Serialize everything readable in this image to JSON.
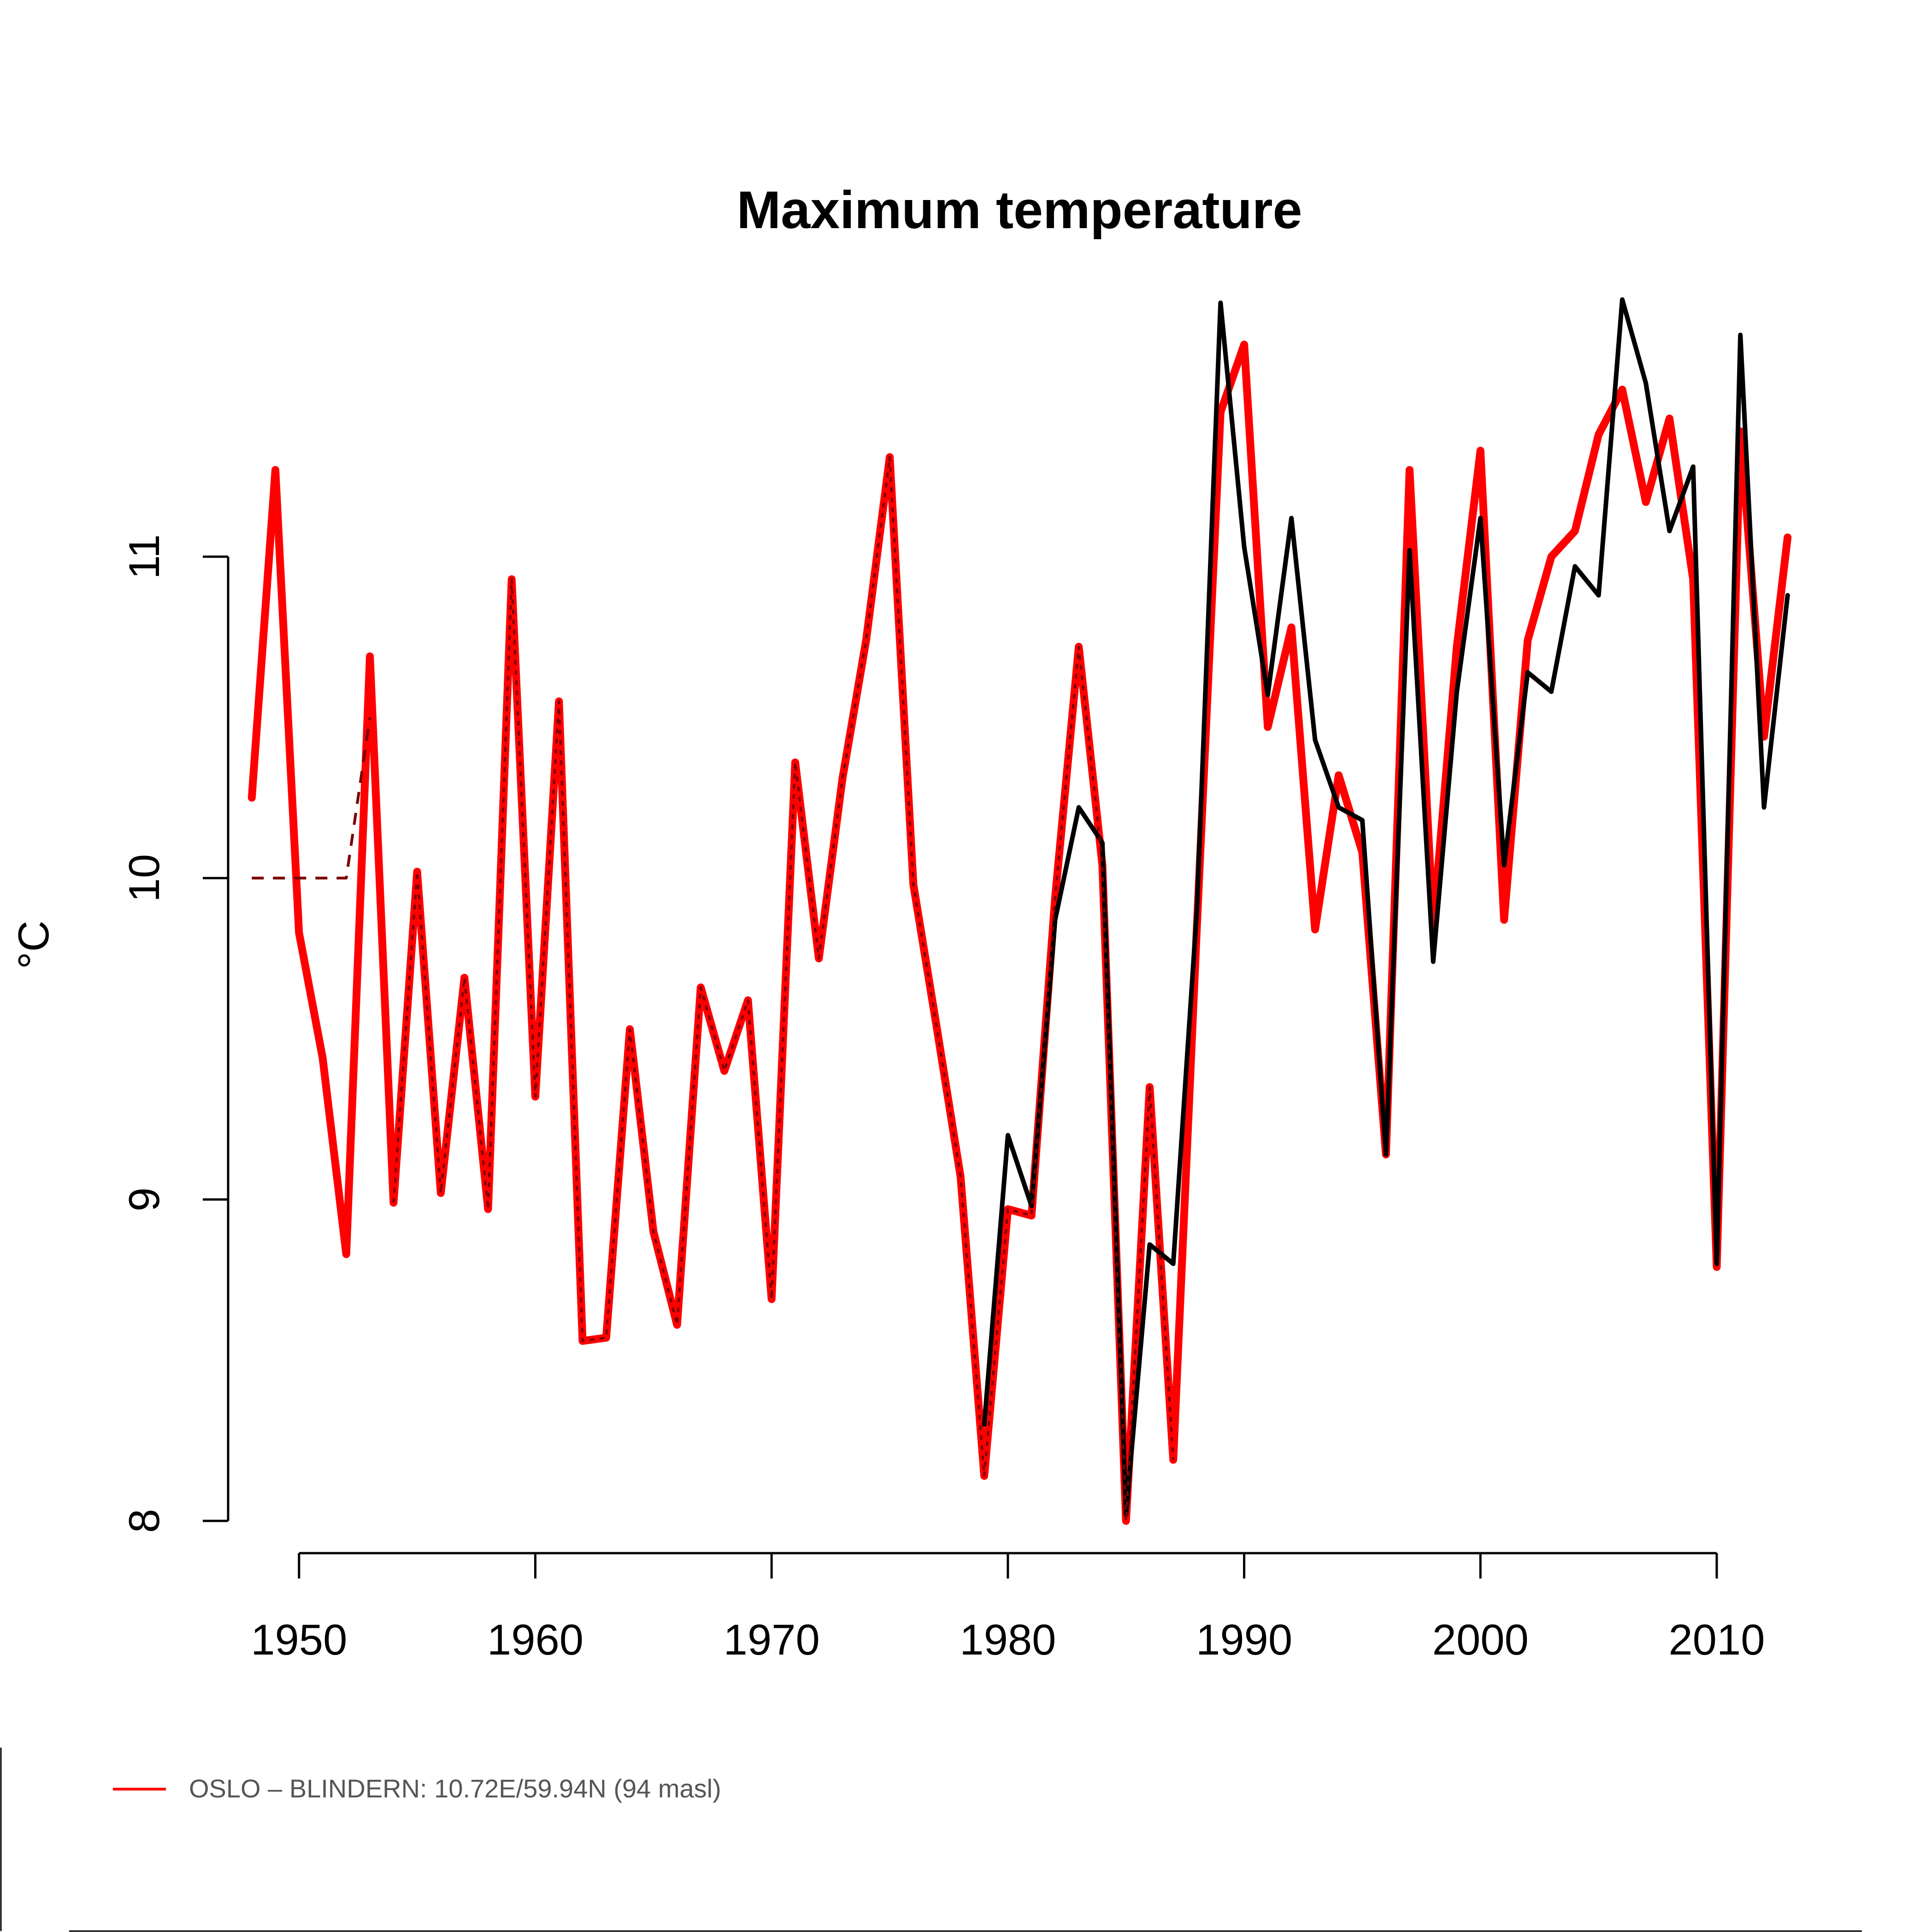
{
  "chart_data": {
    "type": "line",
    "title": "Maximum temperature",
    "xlabel": "",
    "ylabel": "°C",
    "xlim": [
      1947,
      2014
    ],
    "ylim": [
      8,
      11.8
    ],
    "x_ticks": [
      1950,
      1960,
      1970,
      1980,
      1990,
      2000,
      2010
    ],
    "y_ticks": [
      8,
      9,
      10,
      11
    ],
    "grid": false,
    "legend_position": "bottom-left",
    "series": [
      {
        "name": "OSLO – BLINDERN: 10.72E/59.94N (94 masl)",
        "in_legend": true,
        "color": "#ff0000",
        "style": "solid-thick",
        "x": [
          1948,
          1949,
          1950,
          1951,
          1952,
          1953,
          1954,
          1955,
          1956,
          1957,
          1958,
          1959,
          1960,
          1961,
          1962,
          1963,
          1964,
          1965,
          1966,
          1967,
          1968,
          1969,
          1970,
          1971,
          1972,
          1973,
          1974,
          1975,
          1976,
          1977,
          1978,
          1979,
          1980,
          1981,
          1982,
          1983,
          1984,
          1985,
          1986,
          1987,
          1988,
          1989,
          1990,
          1991,
          1992,
          1993,
          1994,
          1995,
          1996,
          1997,
          1998,
          1999,
          2000,
          2001,
          2002,
          2003,
          2004,
          2005,
          2006,
          2007,
          2008,
          2009,
          2010,
          2011,
          2012,
          2013
        ],
        "values": [
          10.25,
          11.27,
          9.83,
          9.44,
          8.83,
          10.69,
          8.99,
          10.02,
          9.02,
          9.69,
          8.97,
          10.93,
          9.32,
          10.55,
          8.56,
          8.57,
          9.53,
          8.9,
          8.61,
          9.66,
          9.4,
          9.62,
          8.69,
          10.36,
          9.75,
          10.31,
          10.74,
          11.31,
          9.98,
          9.53,
          9.07,
          8.14,
          8.97,
          8.95,
          9.94,
          10.72,
          10.04,
          8.0,
          9.35,
          8.19,
          9.85,
          11.45,
          11.66,
          10.47,
          10.78,
          9.84,
          10.32,
          10.08,
          9.14,
          11.27,
          9.85,
          10.72,
          11.33,
          9.87,
          10.74,
          11.0,
          11.08,
          11.38,
          11.52,
          11.17,
          11.43,
          10.93,
          8.79,
          11.39,
          10.44,
          11.06
        ]
      },
      {
        "name": "",
        "in_legend": false,
        "color": "#000000",
        "style": "solid",
        "x": [
          1979,
          1980,
          1981,
          1982,
          1983,
          1984,
          1985,
          1986,
          1987,
          1988,
          1989,
          1990,
          1991,
          1992,
          1993,
          1994,
          1995,
          1996,
          1997,
          1998,
          1999,
          2000,
          2001,
          2002,
          2003,
          2004,
          2005,
          2006,
          2007,
          2008,
          2009,
          2010,
          2011,
          2012,
          2013
        ],
        "values": [
          8.3,
          9.2,
          8.98,
          9.87,
          10.22,
          10.11,
          8.02,
          8.86,
          8.8,
          9.9,
          11.79,
          11.03,
          10.57,
          11.12,
          10.43,
          10.22,
          10.18,
          9.14,
          11.02,
          9.74,
          10.58,
          11.12,
          10.04,
          10.64,
          10.58,
          10.97,
          10.88,
          11.8,
          11.54,
          11.08,
          11.28,
          8.8,
          11.69,
          10.22,
          10.88
        ]
      },
      {
        "name": "",
        "in_legend": false,
        "color": "#7a0000",
        "style": "dashed",
        "x": [
          1948,
          1949,
          1950,
          1951,
          1952,
          1953
        ],
        "values": [
          10.0,
          10.0,
          10.0,
          10.0,
          10.0,
          10.5
        ]
      },
      {
        "name": "",
        "in_legend": false,
        "color": "#7a0000",
        "style": "dotted",
        "x": [
          1954,
          1955,
          1956,
          1957,
          1958,
          1959,
          1960,
          1961,
          1962,
          1963,
          1964,
          1965,
          1966,
          1967,
          1968,
          1969,
          1970,
          1971,
          1972,
          1973,
          1974,
          1975,
          1976,
          1977,
          1978,
          1979,
          1980,
          1981,
          1982,
          1983,
          1984,
          1985,
          1986,
          1987
        ],
        "values": [
          8.99,
          10.02,
          9.02,
          9.69,
          8.97,
          10.93,
          9.32,
          10.55,
          8.56,
          8.57,
          9.53,
          8.9,
          8.61,
          9.66,
          9.4,
          9.62,
          8.69,
          10.36,
          9.75,
          10.31,
          10.74,
          11.31,
          9.98,
          9.53,
          9.07,
          8.14,
          8.97,
          8.95,
          9.94,
          10.72,
          10.04,
          8.0,
          9.35,
          8.19
        ]
      }
    ]
  }
}
